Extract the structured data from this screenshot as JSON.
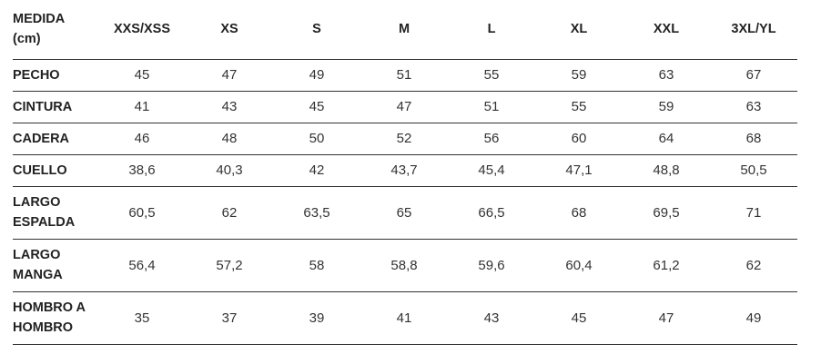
{
  "table": {
    "header": [
      "MEDIDA (cm)",
      "XXS/XSS",
      "XS",
      "S",
      "M",
      "L",
      "XL",
      "XXL",
      "3XL/YL"
    ],
    "rows": [
      [
        "PECHO",
        "45",
        "47",
        "49",
        "51",
        "55",
        "59",
        "63",
        "67"
      ],
      [
        "CINTURA",
        "41",
        "43",
        "45",
        "47",
        "51",
        "55",
        "59",
        "63"
      ],
      [
        "CADERA",
        "46",
        "48",
        "50",
        "52",
        "56",
        "60",
        "64",
        "68"
      ],
      [
        "CUELLO",
        "38,6",
        "40,3",
        "42",
        "43,7",
        "45,4",
        "47,1",
        "48,8",
        "50,5"
      ],
      [
        "LARGO ESPALDA",
        "60,5",
        "62",
        "63,5",
        "65",
        "66,5",
        "68",
        "69,5",
        "71"
      ],
      [
        "LARGO MANGA",
        "56,4",
        "57,2",
        "58",
        "58,8",
        "59,6",
        "60,4",
        "61,2",
        "62"
      ],
      [
        "HOMBRO A HOMBRO",
        "35",
        "37",
        "39",
        "41",
        "43",
        "45",
        "47",
        "49"
      ]
    ]
  }
}
